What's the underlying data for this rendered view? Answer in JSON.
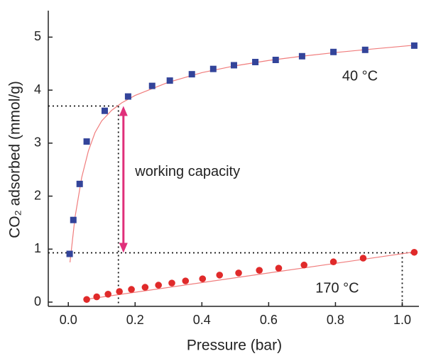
{
  "chart_data": {
    "type": "scatter",
    "xlabel": "Pressure (bar)",
    "ylabel": "CO₂ adsorbed (mmol/g)",
    "xlim": [
      -0.06,
      1.05
    ],
    "ylim": [
      -0.08,
      5.5
    ],
    "xticks": [
      {
        "value": 0,
        "label": "0.0"
      },
      {
        "value": 0.2,
        "label": "0.2"
      },
      {
        "value": 0.4,
        "label": "0.4"
      },
      {
        "value": 0.6,
        "label": "0.6"
      },
      {
        "value": 0.8,
        "label": "0.8"
      },
      {
        "value": 1,
        "label": "1.0"
      }
    ],
    "yticks": [
      0,
      1,
      2,
      3,
      4,
      5
    ],
    "series": [
      {
        "name": "40 °C",
        "color": "#33449a",
        "marker": "square",
        "x": [
          0.004,
          0.015,
          0.034,
          0.055,
          0.109,
          0.179,
          0.251,
          0.304,
          0.37,
          0.434,
          0.496,
          0.56,
          0.621,
          0.7,
          0.794,
          0.889,
          1.036
        ],
        "values": [
          0.91,
          1.55,
          2.23,
          3.03,
          3.61,
          3.88,
          4.08,
          4.18,
          4.3,
          4.4,
          4.47,
          4.53,
          4.57,
          4.64,
          4.72,
          4.76,
          4.84
        ]
      },
      {
        "name": "170 °C",
        "color": "#e02a2a",
        "marker": "circle",
        "x": [
          0.055,
          0.085,
          0.119,
          0.153,
          0.189,
          0.23,
          0.27,
          0.31,
          0.351,
          0.402,
          0.453,
          0.51,
          0.572,
          0.63,
          0.706,
          0.794,
          0.883,
          1.036
        ],
        "values": [
          0.05,
          0.1,
          0.15,
          0.2,
          0.24,
          0.28,
          0.32,
          0.36,
          0.4,
          0.44,
          0.51,
          0.55,
          0.6,
          0.64,
          0.7,
          0.76,
          0.83,
          0.94
        ]
      },
      {
        "color": "#f07c7c",
        "marker": "line",
        "x": [
          0.005,
          0.02,
          0.04,
          0.06,
          0.08,
          0.1,
          0.13,
          0.16,
          0.2,
          0.3,
          0.4,
          0.5,
          0.6,
          0.7,
          0.8,
          0.9,
          1.04
        ],
        "values": [
          0.75,
          1.6,
          2.35,
          2.85,
          3.2,
          3.42,
          3.62,
          3.76,
          3.9,
          4.15,
          4.33,
          4.46,
          4.56,
          4.64,
          4.71,
          4.77,
          4.85
        ]
      },
      {
        "color": "#f07c7c",
        "marker": "line",
        "x": [
          0.05,
          1.04
        ],
        "values": [
          0.05,
          0.95
        ]
      }
    ],
    "reference_lines": [
      {
        "x": [
          -0.06,
          0.15
        ],
        "values": [
          3.7,
          3.7
        ]
      },
      {
        "x": [
          0.15,
          0.15
        ],
        "values": [
          3.7,
          -0.08
        ]
      },
      {
        "x": [
          -0.06,
          1.04
        ],
        "values": [
          0.93,
          0.93
        ]
      },
      {
        "x": [
          1,
          1
        ],
        "values": [
          0.93,
          -0.08
        ]
      }
    ],
    "arrow": {
      "x": 0.165,
      "values": [
        3.7,
        0.93
      ],
      "color": "#e0307a"
    },
    "annotations": [
      {
        "text": "40 °C",
        "x": 0.82,
        "y": 4.25
      },
      {
        "text": "170 °C",
        "x": 0.74,
        "y": 0.25
      },
      {
        "text": "working capacity",
        "x": 0.2,
        "y": 2.45
      }
    ]
  }
}
